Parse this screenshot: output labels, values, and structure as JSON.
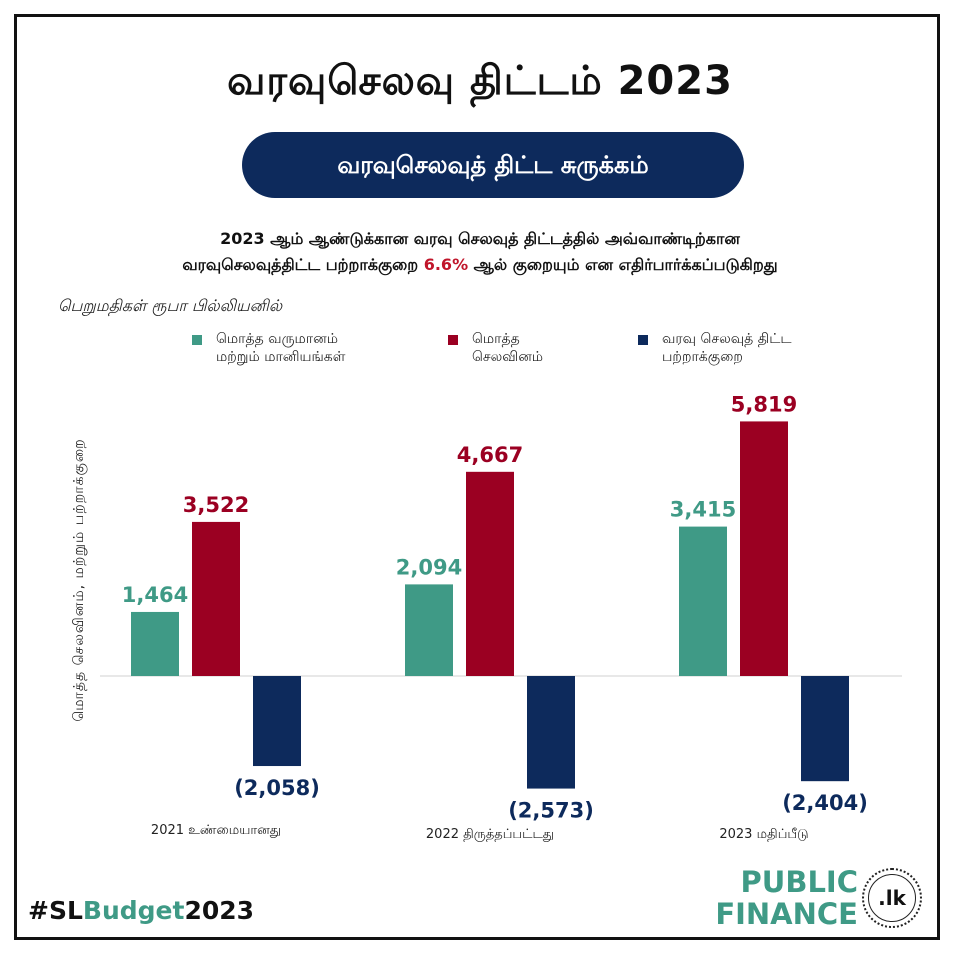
{
  "title": "வரவுசெலவு திட்டம் 2023",
  "pill_label": "வரவுசெலவுத் திட்ட சுருக்கம்",
  "subtitle_line1": "2023 ஆம் ஆண்டுக்கான வரவு செலவுத் திட்டத்தில் அவ்வாண்டிற்கான",
  "subtitle_line2_before": "வரவுசெலவுத்திட்ட பற்றாக்குறை ",
  "subtitle_highlight": "6.6%",
  "subtitle_line2_after": " ஆல் குறையும் என எதிர்பார்க்கப்படுகிறது",
  "unit_note": "பெறுமதிகள் ரூபா பில்லியனில்",
  "colors": {
    "revenue": "#3f9a86",
    "expenditure": "#9b0022",
    "deficit": "#0d2a5c",
    "accent": "#c0152a"
  },
  "chart_data": {
    "type": "bar",
    "categories": [
      "2021 உண்மையானது",
      "2022 திருத்தப்பட்டது",
      "2023 மதிப்பீடு"
    ],
    "series": [
      {
        "name": "மொத்த வருமானம் மற்றும் மானியங்கள்",
        "values": [
          1464,
          2094,
          3415
        ],
        "labels": [
          "1,464",
          "2,094",
          "3,415"
        ]
      },
      {
        "name": "மொத்த செலவினம்",
        "values": [
          3522,
          4667,
          5819
        ],
        "labels": [
          "3,522",
          "4,667",
          "5,819"
        ]
      },
      {
        "name": "வரவு செலவுத் திட்ட பற்றாக்குறை",
        "values": [
          -2058,
          -2573,
          -2404
        ],
        "labels": [
          "(2,058)",
          "(2,573)",
          "(2,404)"
        ]
      }
    ],
    "ylabel": "மொத்த செலவினம், மற்றும் பற்றாக்குறை",
    "ylim": [
      -2600,
      6000
    ],
    "grid": false,
    "legend": "top"
  },
  "legend": [
    {
      "line1": "மொத்த வருமானம்",
      "line2": "மற்றும் மானியங்கள்"
    },
    {
      "line1": "மொத்த",
      "line2": "செலவினம்"
    },
    {
      "line1": "வரவு செலவுத் திட்ட",
      "line2": "பற்றாக்குறை"
    }
  ],
  "hashtag_prefix": "#SL",
  "hashtag_middle": "Budget",
  "hashtag_suffix": "2023",
  "logo": {
    "line1": "PUBLIC",
    "line2": "FINANCE",
    "seal": ".lk"
  }
}
